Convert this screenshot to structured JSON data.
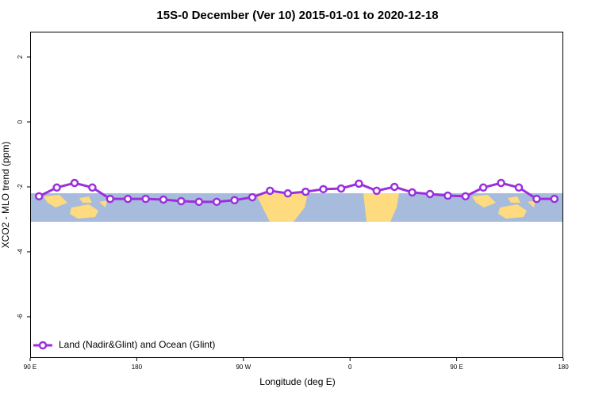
{
  "chart_data": {
    "type": "line",
    "title": "15S-0 December (Ver 10)   2015-01-01 to 2020-12-18",
    "x_label": "Longitude (deg E)",
    "y_label": "XCO2 - MLO trend (ppm)",
    "xlim": [
      90,
      540
    ],
    "xticks": [
      {
        "value": 90,
        "label": "90 E"
      },
      180,
      {
        "value": 270,
        "label": "90 W"
      },
      {
        "value": 360,
        "label": "0"
      },
      {
        "value": 450,
        "label": "90 E"
      },
      {
        "value": 540,
        "label": "180"
      }
    ],
    "ylim": [
      -7.27,
      2.78
    ],
    "yticks": [
      -6,
      -4,
      -2,
      0,
      2
    ],
    "legend": "bottom-left",
    "x": [
      97.5,
      112.5,
      127.5,
      142.5,
      157.5,
      172.5,
      187.5,
      202.5,
      217.5,
      232.5,
      247.5,
      262.5,
      277.5,
      292.5,
      307.5,
      322.5,
      337.5,
      352.5,
      367.5,
      382.5,
      397.5,
      412.5,
      427.5,
      442.5,
      457.5,
      472.5,
      487.5,
      502.5,
      517.5,
      532.5
    ],
    "series": [
      {
        "name": "Land (Nadir&Glint) and Ocean (Glint)",
        "color": "#9b2fe0",
        "values": [
          -2.29,
          -2.02,
          -1.88,
          -2.02,
          -2.37,
          -2.37,
          -2.37,
          -2.39,
          -2.44,
          -2.46,
          -2.46,
          -2.41,
          -2.32,
          -2.12,
          -2.2,
          -2.15,
          -2.07,
          -2.05,
          -1.9,
          -2.12,
          -2.0,
          -2.17,
          -2.22,
          -2.27,
          -2.29,
          -2.02,
          -1.88,
          -2.02,
          -2.37,
          -2.37
        ]
      }
    ]
  }
}
